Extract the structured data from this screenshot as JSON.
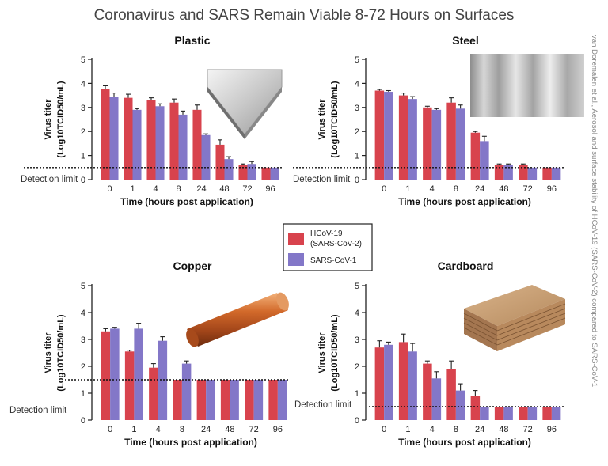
{
  "title": "Coronavirus and SARS Remain Viable 8-72 Hours on Surfaces",
  "citation": "van Doremalen et al., Aerosol and surface stability of HCoV-19 (SARS-CoV-2) compared to SARS-CoV-1",
  "legend": [
    {
      "label_lines": [
        "HCoV-19",
        "(SARS-CoV-2)"
      ],
      "color": "#d8434d"
    },
    {
      "label_lines": [
        "SARS-CoV-1"
      ],
      "color": "#8377c8"
    }
  ],
  "colors": {
    "sars2": "#d8434d",
    "sars1": "#8377c8",
    "error": "#222222"
  },
  "detection_label": "Detection limit",
  "chart_data": [
    {
      "type": "bar",
      "title": "Plastic",
      "xlabel": "Time (hours post application)",
      "ylabel": [
        "Virus titer",
        "(Log10TCID50/mL)"
      ],
      "ylim": [
        0,
        5
      ],
      "yticks": [
        "0",
        "1",
        "2",
        "3",
        "4",
        "5"
      ],
      "categories": [
        "0",
        "1",
        "4",
        "8",
        "24",
        "48",
        "72",
        "96"
      ],
      "detection_limit": 0.5,
      "series": [
        {
          "name": "HCoV-19 (SARS-CoV-2)",
          "values": [
            3.75,
            3.4,
            3.3,
            3.2,
            2.9,
            1.45,
            0.6,
            0.5
          ],
          "errors": [
            0.15,
            0.15,
            0.1,
            0.15,
            0.2,
            0.2,
            0.05,
            0
          ]
        },
        {
          "name": "SARS-CoV-1",
          "values": [
            3.45,
            2.9,
            3.05,
            2.7,
            1.85,
            0.85,
            0.65,
            0.5
          ],
          "errors": [
            0.15,
            0.05,
            0.1,
            0.15,
            0.05,
            0.1,
            0.1,
            0
          ]
        }
      ]
    },
    {
      "type": "bar",
      "title": "Steel",
      "xlabel": "Time (hours post application)",
      "ylabel": [
        "Virus titer",
        "(Log10TCID50/mL)"
      ],
      "ylim": [
        0,
        5
      ],
      "yticks": [
        "0",
        "1",
        "2",
        "3",
        "4",
        "5"
      ],
      "categories": [
        "0",
        "1",
        "4",
        "8",
        "24",
        "48",
        "72",
        "96"
      ],
      "detection_limit": 0.5,
      "series": [
        {
          "name": "HCoV-19 (SARS-CoV-2)",
          "values": [
            3.7,
            3.5,
            3.0,
            3.2,
            1.95,
            0.6,
            0.6,
            0.5
          ],
          "errors": [
            0.05,
            0.1,
            0.05,
            0.2,
            0.05,
            0.05,
            0.05,
            0
          ]
        },
        {
          "name": "SARS-CoV-1",
          "values": [
            3.65,
            3.35,
            2.9,
            2.95,
            1.6,
            0.6,
            0.5,
            0.5
          ],
          "errors": [
            0.05,
            0.1,
            0.05,
            0.15,
            0.2,
            0.05,
            0,
            0
          ]
        }
      ]
    },
    {
      "type": "bar",
      "title": "Copper",
      "xlabel": "Time (hours post application)",
      "ylabel": [
        "Virus titer",
        "(Log10TCID50/mL)"
      ],
      "ylim": [
        0,
        5
      ],
      "yticks": [
        "0",
        "1",
        "2",
        "3",
        "4",
        "5"
      ],
      "categories": [
        "0",
        "1",
        "4",
        "8",
        "24",
        "48",
        "72",
        "96"
      ],
      "detection_limit": 1.5,
      "series": [
        {
          "name": "HCoV-19 (SARS-CoV-2)",
          "values": [
            3.3,
            2.55,
            1.95,
            1.5,
            1.5,
            1.5,
            1.5,
            1.5
          ],
          "errors": [
            0.1,
            0.05,
            0.15,
            0,
            0,
            0,
            0,
            0
          ]
        },
        {
          "name": "SARS-CoV-1",
          "values": [
            3.4,
            3.4,
            2.95,
            2.1,
            1.5,
            1.5,
            1.5,
            1.5
          ],
          "errors": [
            0.05,
            0.2,
            0.15,
            0.1,
            0,
            0,
            0,
            0
          ]
        }
      ]
    },
    {
      "type": "bar",
      "title": "Cardboard",
      "xlabel": "Time (hours post application)",
      "ylabel": [
        "Virus titer",
        "(Log10TCID50/mL)"
      ],
      "ylim": [
        0,
        5
      ],
      "yticks": [
        "0",
        "1",
        "2",
        "3",
        "4",
        "5"
      ],
      "categories": [
        "0",
        "1",
        "4",
        "8",
        "24",
        "48",
        "72",
        "96"
      ],
      "detection_limit": 0.5,
      "series": [
        {
          "name": "HCoV-19 (SARS-CoV-2)",
          "values": [
            2.7,
            2.9,
            2.1,
            1.9,
            0.9,
            0.5,
            0.5,
            0.5
          ],
          "errors": [
            0.25,
            0.3,
            0.1,
            0.3,
            0.2,
            0,
            0,
            0
          ]
        },
        {
          "name": "SARS-CoV-1",
          "values": [
            2.8,
            2.55,
            1.55,
            1.1,
            0.5,
            0.5,
            0.5,
            0.5
          ],
          "errors": [
            0.1,
            0.3,
            0.25,
            0.25,
            0,
            0,
            0,
            0
          ]
        }
      ]
    }
  ]
}
